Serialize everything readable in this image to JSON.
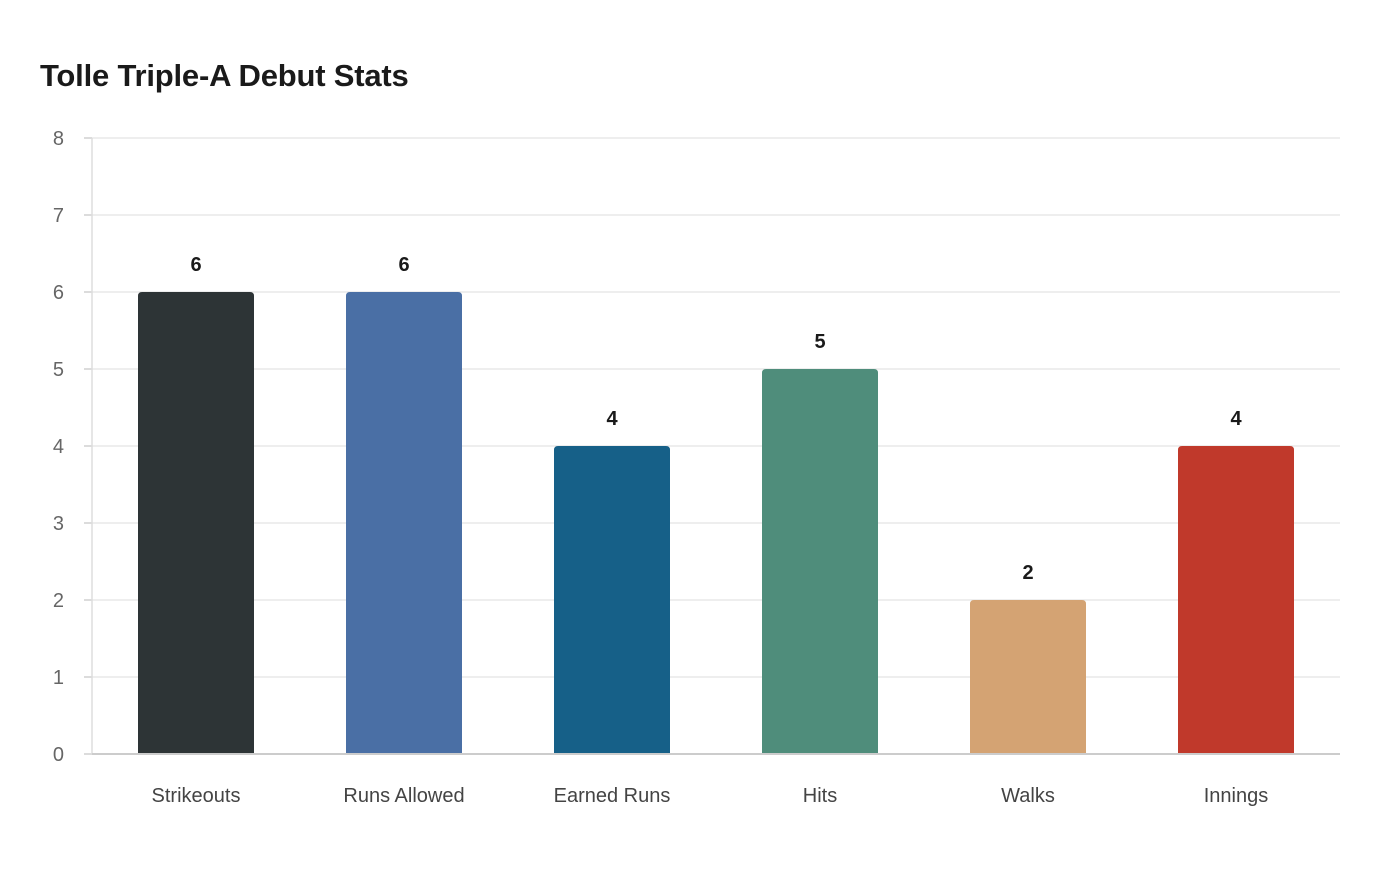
{
  "chart_data": {
    "type": "bar",
    "title": "Tolle Triple-A Debut Stats",
    "xlabel": "",
    "ylabel": "",
    "categories": [
      "Strikeouts",
      "Runs Allowed",
      "Earned Runs",
      "Hits",
      "Walks",
      "Innings"
    ],
    "values": [
      6,
      6,
      4,
      5,
      2,
      4
    ],
    "colors": [
      "#2d3436",
      "#4a6fa5",
      "#166088",
      "#4f8d7b",
      "#d4a373",
      "#c0392b"
    ],
    "ylim": [
      0,
      8
    ],
    "yticks": [
      0,
      1,
      2,
      3,
      4,
      5,
      6,
      7,
      8
    ],
    "grid": true,
    "legend": "none",
    "data_labels": true
  }
}
